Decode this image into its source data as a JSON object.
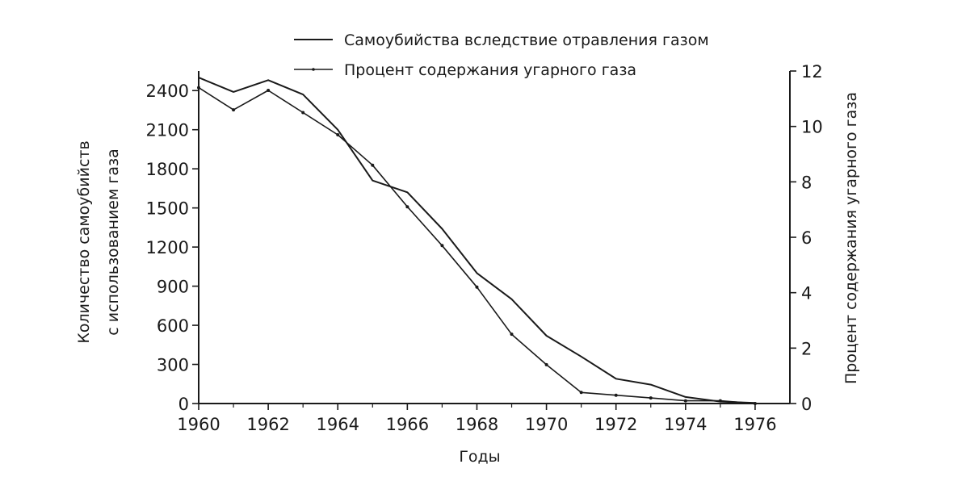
{
  "chart_data": {
    "type": "line",
    "title": "",
    "xlabel": "Годы",
    "ylabel": "Количество самоубийств с использованием газа",
    "ylabel_lines": [
      "Количество самоубийств",
      "с использованием газа"
    ],
    "y2label": "Процент содержания угарного газа",
    "xlim": [
      1960,
      1977
    ],
    "ylim": [
      0,
      2550
    ],
    "y2lim": [
      0,
      12
    ],
    "x_ticks": [
      "1960",
      "1962",
      "1964",
      "1966",
      "1968",
      "1970",
      "1972",
      "1974",
      "1976"
    ],
    "y_ticks": [
      "0",
      "300",
      "600",
      "900",
      "1200",
      "1500",
      "1800",
      "2100",
      "2400"
    ],
    "y2_ticks": [
      "0",
      "2",
      "4",
      "6",
      "8",
      "10",
      "12"
    ],
    "legend_position": "top-center",
    "grid": false,
    "series": [
      {
        "name": "Самоубийства вследствие отравления газом",
        "axis": "left",
        "style": "solid",
        "x": [
          1960,
          1961,
          1962,
          1963,
          1964,
          1965,
          1966,
          1967,
          1968,
          1969,
          1970,
          1971,
          1972,
          1973,
          1974,
          1975,
          1976
        ],
        "values": [
          2500,
          2390,
          2480,
          2370,
          2100,
          1710,
          1620,
          1340,
          1000,
          800,
          520,
          360,
          190,
          145,
          50,
          15,
          5
        ]
      },
      {
        "name": "Процент содержания угарного газа",
        "axis": "right",
        "style": "dash-dot",
        "x": [
          1960,
          1961,
          1962,
          1963,
          1964,
          1965,
          1966,
          1967,
          1968,
          1969,
          1970,
          1971,
          1972,
          1973,
          1974,
          1975,
          1976
        ],
        "values": [
          11.4,
          10.6,
          11.3,
          10.5,
          9.7,
          8.6,
          7.1,
          5.7,
          4.2,
          2.5,
          1.4,
          0.4,
          0.3,
          0.2,
          0.1,
          0.1,
          0.0
        ]
      }
    ]
  }
}
